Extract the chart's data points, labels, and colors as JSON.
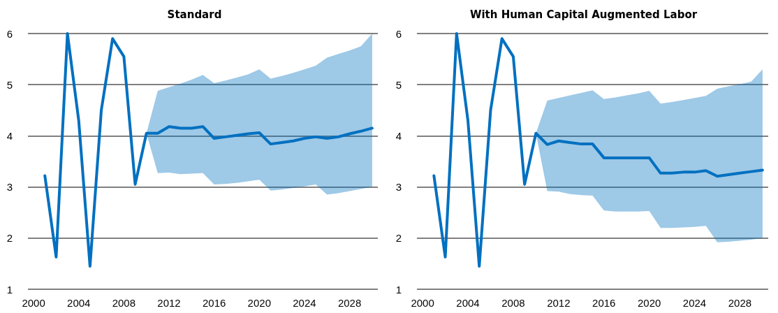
{
  "chart_data": [
    {
      "type": "line",
      "title": "Standard",
      "categories": [
        "2000",
        null,
        null,
        null,
        "2004",
        null,
        null,
        null,
        "2008",
        null,
        null,
        null,
        "2012",
        null,
        null,
        null,
        "2016",
        null,
        null,
        null,
        "2020",
        null,
        null,
        null,
        "2024",
        null,
        null,
        null,
        "2028",
        null,
        null
      ],
      "series": [
        {
          "color": "#0070c0",
          "values": [
            null,
            3.22,
            1.63,
            6.0,
            4.3,
            1.45,
            4.5,
            5.9,
            5.55,
            3.05,
            4.05,
            4.05,
            4.18,
            4.15,
            4.15,
            4.18,
            3.95,
            3.98,
            4.01,
            4.04,
            4.06,
            3.84,
            3.87,
            3.9,
            3.95,
            3.98,
            3.95,
            3.98,
            4.04,
            4.09,
            4.15
          ],
          "lower": [
            null,
            null,
            null,
            null,
            null,
            null,
            null,
            null,
            null,
            null,
            4.05,
            3.27,
            3.28,
            3.25,
            3.26,
            3.27,
            3.05,
            3.06,
            3.08,
            3.11,
            3.14,
            2.93,
            2.95,
            2.98,
            3.01,
            3.05,
            2.85,
            2.88,
            2.92,
            2.96,
            3.0
          ],
          "upper": [
            null,
            null,
            null,
            null,
            null,
            null,
            null,
            null,
            null,
            null,
            4.05,
            4.88,
            4.95,
            5.02,
            5.1,
            5.19,
            5.03,
            5.08,
            5.14,
            5.2,
            5.3,
            5.12,
            5.17,
            5.23,
            5.3,
            5.37,
            5.53,
            5.6,
            5.67,
            5.75,
            6.0
          ]
        }
      ],
      "ylim": [
        1,
        6
      ],
      "yticks": [
        1,
        2,
        3,
        4,
        5,
        6
      ],
      "grid": "y",
      "marker": "none",
      "line_style": "solid"
    },
    {
      "type": "line",
      "title": "With Human Capital Augmented Labor",
      "categories": [
        "2000",
        null,
        null,
        null,
        "2004",
        null,
        null,
        null,
        "2008",
        null,
        null,
        null,
        "2012",
        null,
        null,
        null,
        "2016",
        null,
        null,
        null,
        "2020",
        null,
        null,
        null,
        "2024",
        null,
        null,
        null,
        "2028",
        null,
        null
      ],
      "series": [
        {
          "color": "#0070c0",
          "values": [
            null,
            3.22,
            1.63,
            6.0,
            4.3,
            1.45,
            4.5,
            5.9,
            5.55,
            3.05,
            4.05,
            3.83,
            3.9,
            3.87,
            3.84,
            3.84,
            3.57,
            3.57,
            3.57,
            3.57,
            3.57,
            3.27,
            3.27,
            3.29,
            3.29,
            3.32,
            3.21,
            3.24,
            3.27,
            3.3,
            3.33
          ],
          "lower": [
            null,
            null,
            null,
            null,
            null,
            null,
            null,
            null,
            null,
            null,
            4.05,
            2.92,
            2.91,
            2.86,
            2.84,
            2.83,
            2.54,
            2.52,
            2.52,
            2.52,
            2.53,
            2.2,
            2.2,
            2.21,
            2.22,
            2.24,
            1.92,
            1.93,
            1.95,
            1.97,
            2.0
          ],
          "upper": [
            null,
            null,
            null,
            null,
            null,
            null,
            null,
            null,
            null,
            null,
            4.05,
            4.69,
            4.74,
            4.79,
            4.84,
            4.89,
            4.72,
            4.75,
            4.79,
            4.83,
            4.88,
            4.63,
            4.66,
            4.7,
            4.74,
            4.78,
            4.92,
            4.97,
            5.01,
            5.06,
            5.3
          ]
        }
      ],
      "ylim": [
        1,
        6
      ],
      "yticks": [
        1,
        2,
        3,
        4,
        5,
        6
      ],
      "grid": "y",
      "marker": "none",
      "line_style": "solid"
    }
  ]
}
